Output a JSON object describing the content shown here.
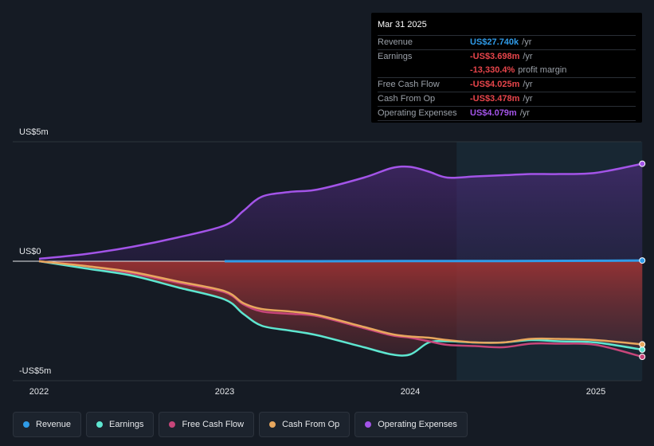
{
  "tooltip": {
    "date": "Mar 31 2025",
    "rows": [
      {
        "label": "Revenue",
        "value": "US$27.740k",
        "suffix": "/yr",
        "color": "#2f9be8"
      },
      {
        "label": "Earnings",
        "value": "-US$3.698m",
        "suffix": "/yr",
        "color": "#e8454b"
      },
      {
        "label": "",
        "value": "-13,330.4%",
        "suffix": "profit margin",
        "color": "#e8454b"
      },
      {
        "label": "Free Cash Flow",
        "value": "-US$4.025m",
        "suffix": "/yr",
        "color": "#e8454b"
      },
      {
        "label": "Cash From Op",
        "value": "-US$3.478m",
        "suffix": "/yr",
        "color": "#e8454b"
      },
      {
        "label": "Operating Expenses",
        "value": "US$4.079m",
        "suffix": "/yr",
        "color": "#a354e8"
      }
    ]
  },
  "legend": [
    {
      "label": "Revenue",
      "color": "#2f9be8"
    },
    {
      "label": "Earnings",
      "color": "#5ee6d0"
    },
    {
      "label": "Free Cash Flow",
      "color": "#c7467a"
    },
    {
      "label": "Cash From Op",
      "color": "#e8a75e"
    },
    {
      "label": "Operating Expenses",
      "color": "#a354e8"
    }
  ],
  "chart_data": {
    "type": "area",
    "y_tick_labels": [
      "US$5m",
      "US$0",
      "-US$5m"
    ],
    "ylim": [
      -5,
      5
    ],
    "y_unit": "US$ millions",
    "x_tick_labels": [
      "2022",
      "2023",
      "2024",
      "2025"
    ],
    "xlim": [
      2021.95,
      2025.25
    ],
    "forecast_shade_start": 2024.25,
    "grid": false,
    "series": [
      {
        "name": "Revenue",
        "color": "#2f9be8",
        "x": [
          2023.0,
          2023.5,
          2024.0,
          2024.5,
          2025.0,
          2025.25
        ],
        "y": [
          0.0,
          0.0,
          0.01,
          0.01,
          0.02,
          0.03
        ]
      },
      {
        "name": "Earnings",
        "color": "#5ee6d0",
        "x": [
          2022.0,
          2022.25,
          2022.5,
          2022.75,
          2023.0,
          2023.1,
          2023.2,
          2023.35,
          2023.5,
          2023.75,
          2023.9,
          2024.0,
          2024.1,
          2024.2,
          2024.35,
          2024.5,
          2024.65,
          2024.8,
          2025.0,
          2025.25
        ],
        "y": [
          0.0,
          -0.3,
          -0.6,
          -1.1,
          -1.6,
          -2.2,
          -2.7,
          -2.9,
          -3.1,
          -3.6,
          -3.9,
          -3.9,
          -3.4,
          -3.35,
          -3.4,
          -3.4,
          -3.3,
          -3.35,
          -3.4,
          -3.7
        ]
      },
      {
        "name": "Free Cash Flow",
        "color": "#c7467a",
        "x": [
          2022.0,
          2022.25,
          2022.5,
          2022.75,
          2023.0,
          2023.1,
          2023.2,
          2023.35,
          2023.5,
          2023.75,
          2023.9,
          2024.0,
          2024.1,
          2024.2,
          2024.35,
          2024.5,
          2024.65,
          2024.8,
          2025.0,
          2025.25
        ],
        "y": [
          0.0,
          -0.2,
          -0.5,
          -0.9,
          -1.3,
          -1.8,
          -2.1,
          -2.2,
          -2.3,
          -2.8,
          -3.1,
          -3.2,
          -3.35,
          -3.5,
          -3.55,
          -3.6,
          -3.45,
          -3.45,
          -3.5,
          -4.0
        ]
      },
      {
        "name": "Cash From Op",
        "color": "#e8a75e",
        "x": [
          2022.0,
          2022.25,
          2022.5,
          2022.75,
          2023.0,
          2023.1,
          2023.2,
          2023.35,
          2023.5,
          2023.75,
          2023.9,
          2024.0,
          2024.1,
          2024.2,
          2024.35,
          2024.5,
          2024.65,
          2024.8,
          2025.0,
          2025.25
        ],
        "y": [
          0.0,
          -0.2,
          -0.45,
          -0.85,
          -1.25,
          -1.75,
          -2.0,
          -2.1,
          -2.25,
          -2.75,
          -3.05,
          -3.15,
          -3.2,
          -3.3,
          -3.4,
          -3.4,
          -3.25,
          -3.25,
          -3.3,
          -3.48
        ]
      },
      {
        "name": "Operating Expenses",
        "color": "#a354e8",
        "x": [
          2022.0,
          2022.25,
          2022.5,
          2022.75,
          2023.0,
          2023.1,
          2023.2,
          2023.35,
          2023.5,
          2023.75,
          2023.9,
          2024.0,
          2024.1,
          2024.2,
          2024.35,
          2024.5,
          2024.65,
          2024.8,
          2025.0,
          2025.25
        ],
        "y": [
          0.1,
          0.3,
          0.6,
          1.0,
          1.5,
          2.1,
          2.7,
          2.9,
          3.0,
          3.5,
          3.9,
          3.95,
          3.75,
          3.5,
          3.55,
          3.6,
          3.65,
          3.65,
          3.7,
          4.08
        ]
      }
    ]
  }
}
